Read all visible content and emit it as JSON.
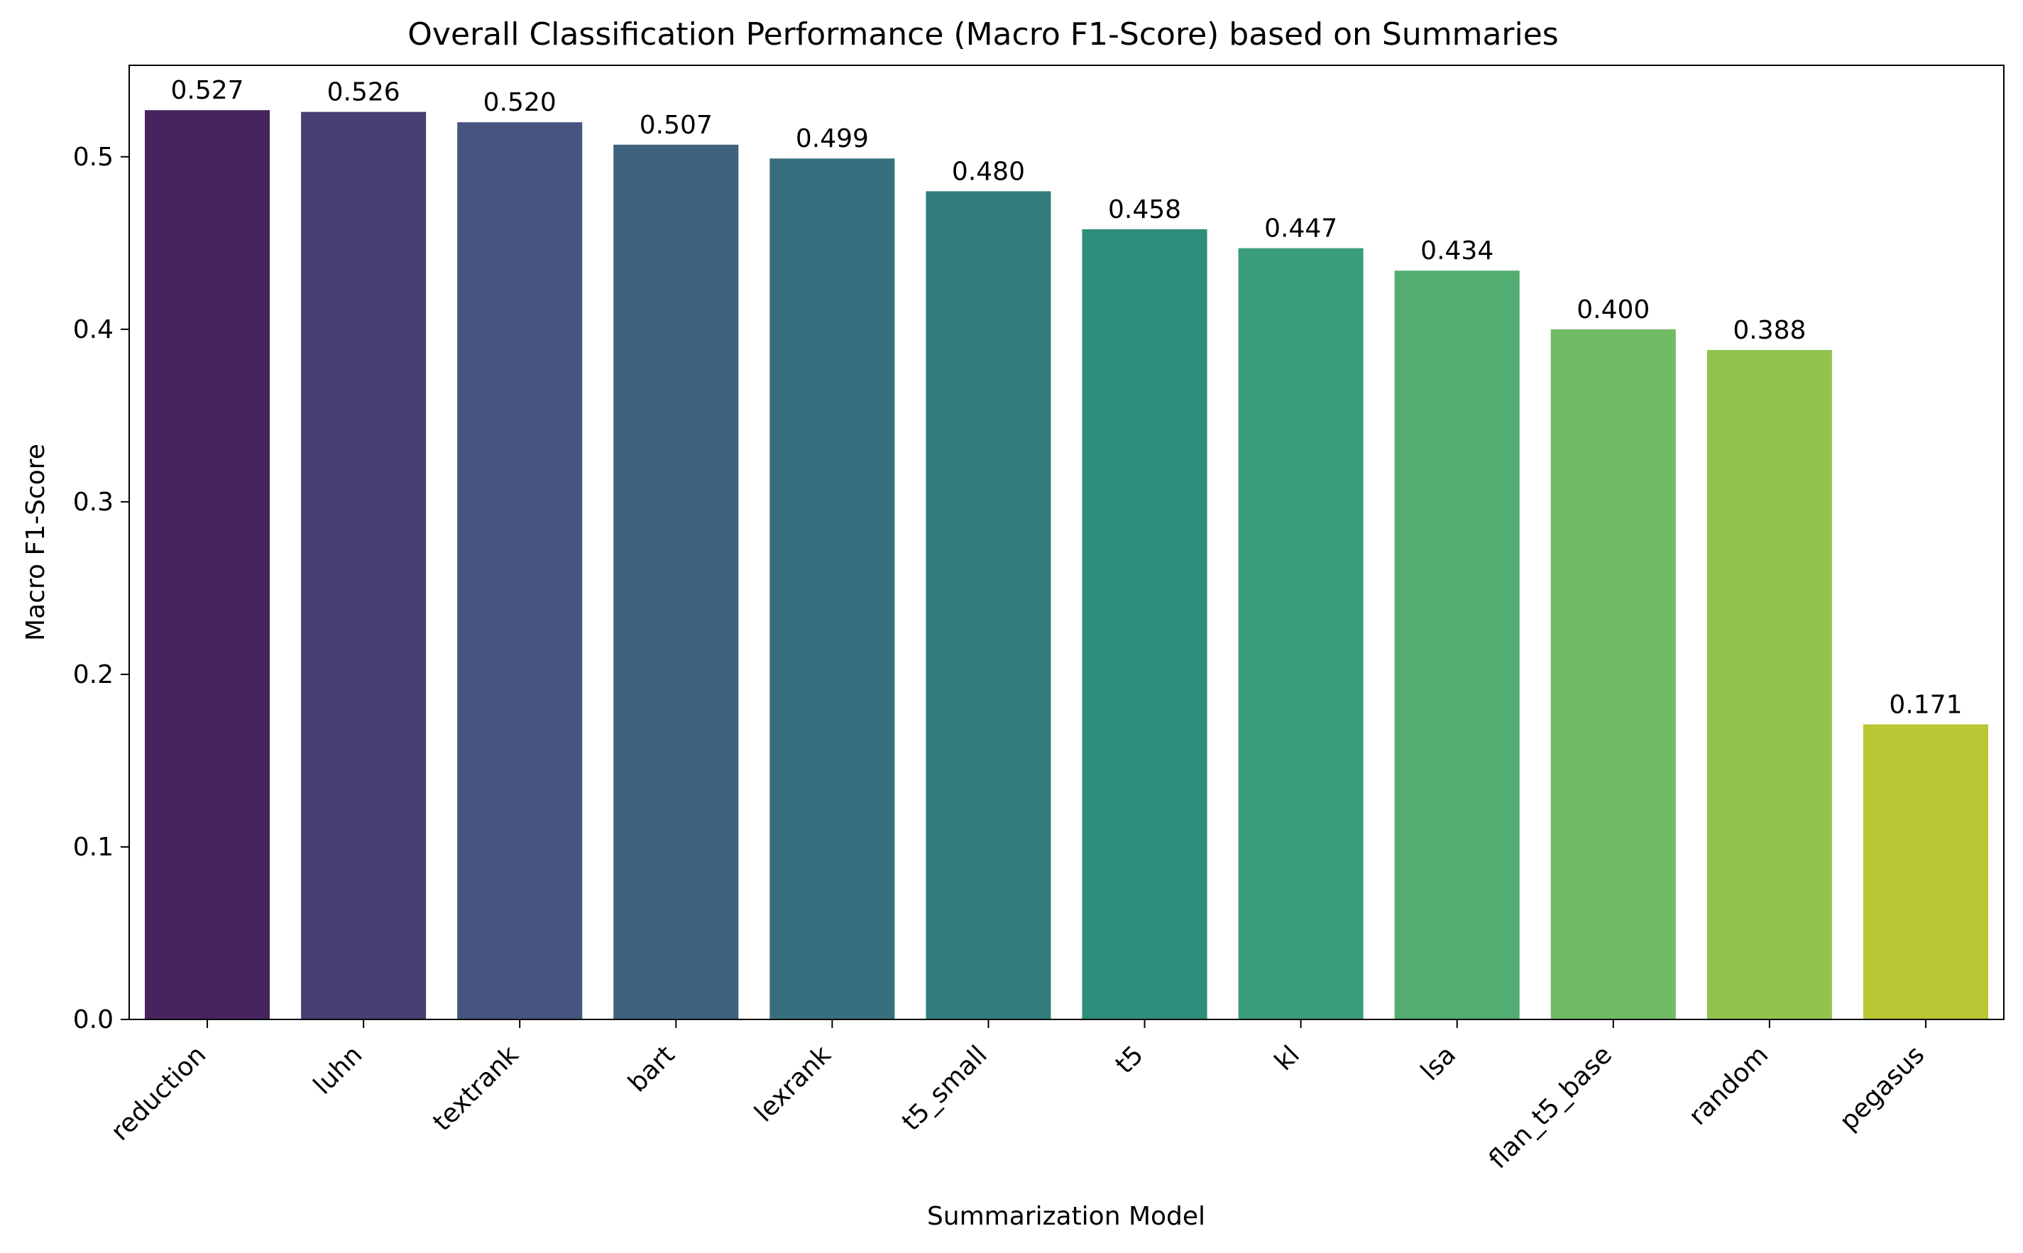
{
  "chart_data": {
    "type": "bar",
    "title": "Overall Classification Performance (Macro F1-Score) based on Summaries",
    "xlabel": "Summarization Model",
    "ylabel": "Macro F1-Score",
    "categories": [
      "reduction",
      "luhn",
      "textrank",
      "bart",
      "lexrank",
      "t5_small",
      "t5",
      "kl",
      "lsa",
      "flan_t5_base",
      "random",
      "pegasus"
    ],
    "values": [
      0.527,
      0.526,
      0.52,
      0.507,
      0.499,
      0.48,
      0.458,
      0.447,
      0.434,
      0.4,
      0.388,
      0.171
    ],
    "value_labels": [
      "0.527",
      "0.526",
      "0.520",
      "0.507",
      "0.499",
      "0.480",
      "0.458",
      "0.447",
      "0.434",
      "0.400",
      "0.388",
      "0.171"
    ],
    "colors": [
      "#46255f",
      "#4a3f74",
      "#475480",
      "#3f627e",
      "#386f7e",
      "#317d7c",
      "#2e8e7c",
      "#3a9d79",
      "#53ad72",
      "#72bb65",
      "#93c24f",
      "#bac634"
    ],
    "yticks": [
      0.0,
      0.1,
      0.2,
      0.3,
      0.4,
      0.5
    ],
    "ytick_labels": [
      "0.0",
      "0.1",
      "0.2",
      "0.3",
      "0.4",
      "0.5"
    ],
    "ylim": [
      0,
      0.553
    ],
    "grid": false,
    "legend": "none"
  }
}
